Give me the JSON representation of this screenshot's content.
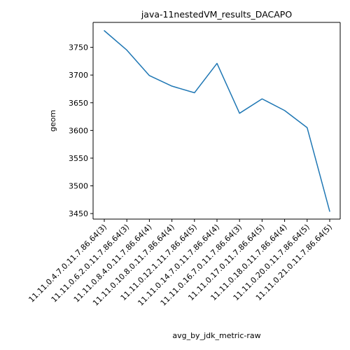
{
  "chart_data": {
    "type": "line",
    "title": "java-11nestedVM_results_DACAPO",
    "xlabel": "avg_by_jdk_metric-raw",
    "ylabel": "geom",
    "categories": [
      "11.11.0.4.7.0.11.7.86.64(3)",
      "11.11.0.6.2.0.11.7.86.64(3)",
      "11.11.0.8.4.0.11.7.86.64(4)",
      "11.11.0.10.8.0.11.7.86.64(4)",
      "11.11.0.12.1.11.7.86.64(5)",
      "11.11.0.14.7.0.11.7.86.64(4)",
      "11.11.0.16.7.0.11.7.86.64(3)",
      "11.11.0.17.0.11.7.86.64(5)",
      "11.11.0.18.0.11.7.86.64(4)",
      "11.11.0.20.0.11.7.86.64(5)",
      "11.11.0.21.0.11.7.86.64(5)"
    ],
    "series": [
      {
        "values": [
          3780,
          3745,
          3699,
          3680,
          3668,
          3721,
          3631,
          3657,
          3636,
          3605,
          3454
        ],
        "color": "#1f77b4"
      }
    ],
    "ylim": [
      3440,
      3795
    ],
    "yticks": [
      3450,
      3500,
      3550,
      3600,
      3650,
      3700,
      3750
    ],
    "grid": false,
    "legend": "none"
  }
}
